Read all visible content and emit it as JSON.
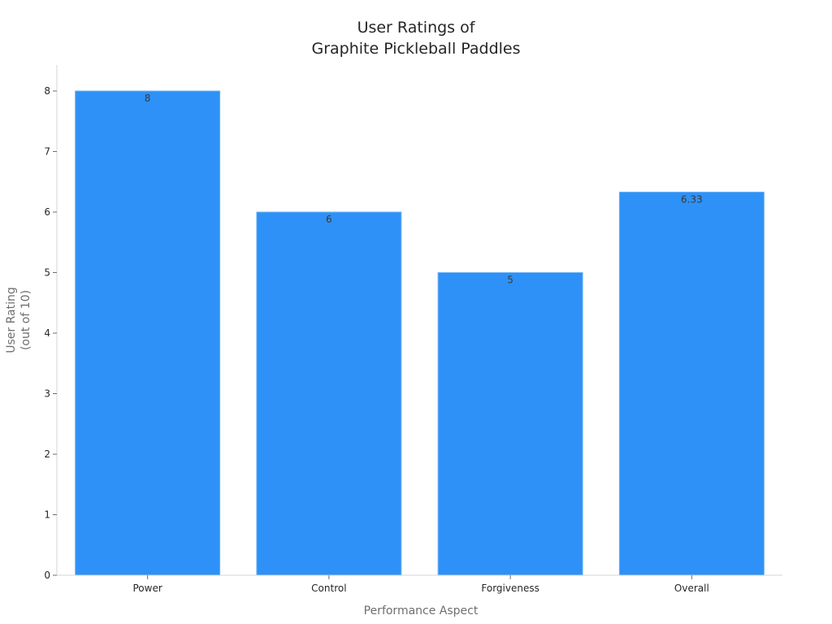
{
  "chart_data": {
    "type": "bar",
    "title": [
      "User Ratings of",
      "Graphite Pickleball Paddles"
    ],
    "xlabel": "Performance Aspect",
    "ylabel": [
      "User Rating",
      "(out of 10)"
    ],
    "categories": [
      "Power",
      "Control",
      "Forgiveness",
      "Overall"
    ],
    "values": [
      8,
      6,
      5,
      6.33
    ],
    "data_labels": [
      "8",
      "6",
      "5",
      "6.33"
    ],
    "ylim": [
      0,
      8.4
    ],
    "yticks": [
      0,
      1,
      2,
      3,
      4,
      5,
      6,
      7,
      8
    ],
    "grid": false,
    "legend": "none",
    "colors": {
      "bar_fill": "#2e91f7",
      "bar_edge": "#6fb3f5"
    }
  }
}
